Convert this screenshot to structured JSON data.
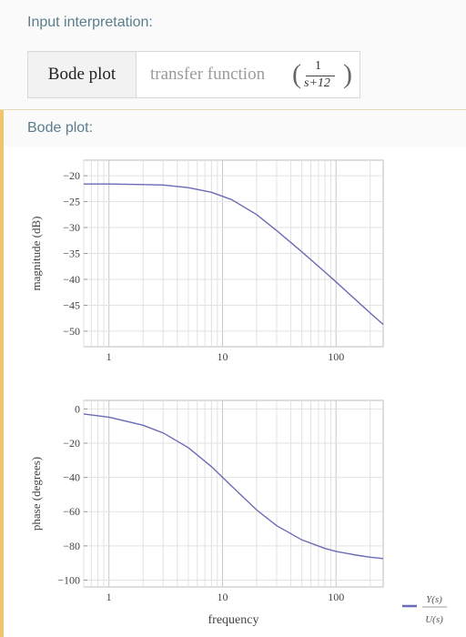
{
  "input_pod": {
    "title": "Input interpretation:",
    "label": "Bode plot",
    "value": "transfer function",
    "fraction_num": "1",
    "fraction_den": "s+12"
  },
  "result_pod": {
    "title": "Bode plot:"
  },
  "legend": {
    "numerator": "Y(s)",
    "denominator": "U(s)"
  },
  "colors": {
    "curve": "#6a6bb5",
    "pod_title": "#5a7d8c",
    "accent_border": "#f0c36d"
  },
  "chart_data": [
    {
      "type": "line",
      "title": "",
      "xlabel": "",
      "ylabel": "magnitude (dB)",
      "xscale": "log",
      "xlim": [
        0.6,
        260
      ],
      "ylim": [
        -53,
        -17
      ],
      "xticks": [
        "1",
        "10",
        "100"
      ],
      "yticks": [
        "-20",
        "-25",
        "-30",
        "-35",
        "-40",
        "-45",
        "-50"
      ],
      "grid": true,
      "series": [
        {
          "name": "Y(s)/U(s)",
          "x": [
            0.6,
            1,
            2,
            3,
            5,
            8,
            12,
            20,
            30,
            50,
            80,
            100,
            150,
            200,
            260
          ],
          "y": [
            -21.6,
            -21.6,
            -21.7,
            -21.8,
            -22.3,
            -23.2,
            -24.6,
            -27.5,
            -30.6,
            -34.7,
            -38.6,
            -40.5,
            -44.0,
            -46.5,
            -48.7
          ]
        }
      ]
    },
    {
      "type": "line",
      "title": "",
      "xlabel": "frequency",
      "ylabel": "phase (degrees)",
      "xscale": "log",
      "xlim": [
        0.6,
        260
      ],
      "ylim": [
        -104,
        5
      ],
      "xticks": [
        "1",
        "10",
        "100"
      ],
      "yticks": [
        "0",
        "-20",
        "-40",
        "-60",
        "-80",
        "-100"
      ],
      "grid": true,
      "series": [
        {
          "name": "Y(s)/U(s)",
          "x": [
            0.6,
            1,
            2,
            3,
            5,
            8,
            12,
            20,
            30,
            50,
            80,
            100,
            150,
            200,
            260
          ],
          "y": [
            -2.9,
            -4.8,
            -9.5,
            -14.0,
            -22.6,
            -33.7,
            -45.0,
            -59.0,
            -68.2,
            -76.5,
            -81.5,
            -83.2,
            -85.4,
            -86.6,
            -87.4
          ]
        }
      ]
    }
  ]
}
